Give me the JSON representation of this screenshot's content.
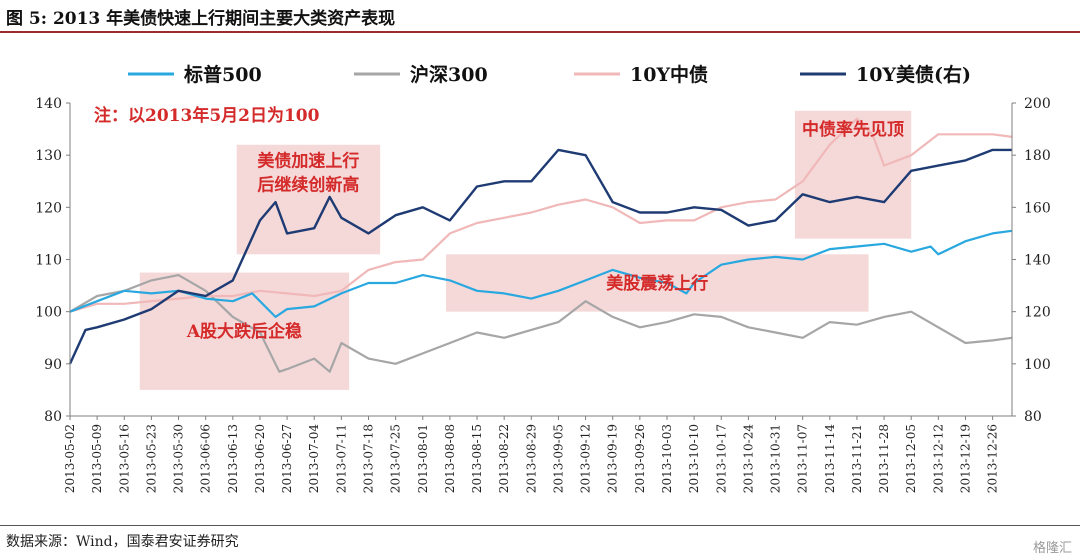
{
  "figure": {
    "title": "图 5:  2013 年美债快速上行期间主要大类资产表现",
    "source": "数据来源：Wind，国泰君安证券研究",
    "watermark": "格隆汇"
  },
  "chart_data": {
    "type": "line",
    "title": "",
    "note": "注：以2013年5月2日为100",
    "legend_position": "top",
    "x_ticks": [
      "2013-05-02",
      "2013-05-09",
      "2013-05-16",
      "2013-05-23",
      "2013-05-30",
      "2013-06-06",
      "2013-06-13",
      "2013-06-20",
      "2013-06-27",
      "2013-07-04",
      "2013-07-11",
      "2013-07-18",
      "2013-07-25",
      "2013-08-01",
      "2013-08-08",
      "2013-08-15",
      "2013-08-22",
      "2013-08-29",
      "2013-09-05",
      "2013-09-12",
      "2013-09-19",
      "2013-09-26",
      "2013-10-03",
      "2013-10-10",
      "2013-10-17",
      "2013-10-24",
      "2013-10-31",
      "2013-11-07",
      "2013-11-14",
      "2013-11-21",
      "2013-11-28",
      "2013-12-05",
      "2013-12-12",
      "2013-12-19",
      "2013-12-26"
    ],
    "x_range": [
      "2013-05-02",
      "2013-12-31"
    ],
    "y_left": {
      "min": 80,
      "max": 140,
      "ticks": [
        80,
        90,
        100,
        110,
        120,
        130,
        140
      ]
    },
    "y_right": {
      "min": 80,
      "max": 200,
      "ticks": [
        80,
        100,
        120,
        140,
        160,
        180,
        200
      ]
    },
    "series": [
      {
        "name": "标普500",
        "axis": "left",
        "color": "#29a8e0",
        "points": [
          [
            "2013-05-02",
            100
          ],
          [
            "2013-05-09",
            102
          ],
          [
            "2013-05-16",
            104
          ],
          [
            "2013-05-23",
            103.5
          ],
          [
            "2013-05-30",
            104
          ],
          [
            "2013-06-06",
            102.5
          ],
          [
            "2013-06-13",
            102
          ],
          [
            "2013-06-18",
            103.5
          ],
          [
            "2013-06-24",
            99
          ],
          [
            "2013-06-27",
            100.5
          ],
          [
            "2013-07-04",
            101
          ],
          [
            "2013-07-11",
            103.5
          ],
          [
            "2013-07-18",
            105.5
          ],
          [
            "2013-07-25",
            105.5
          ],
          [
            "2013-08-01",
            107
          ],
          [
            "2013-08-08",
            106
          ],
          [
            "2013-08-15",
            104
          ],
          [
            "2013-08-22",
            103.5
          ],
          [
            "2013-08-29",
            102.5
          ],
          [
            "2013-09-05",
            104
          ],
          [
            "2013-09-12",
            106
          ],
          [
            "2013-09-19",
            108
          ],
          [
            "2013-09-26",
            106.5
          ],
          [
            "2013-10-03",
            105.5
          ],
          [
            "2013-10-08",
            103.5
          ],
          [
            "2013-10-10",
            105.5
          ],
          [
            "2013-10-17",
            109
          ],
          [
            "2013-10-24",
            110
          ],
          [
            "2013-10-31",
            110.5
          ],
          [
            "2013-11-07",
            110
          ],
          [
            "2013-11-14",
            112
          ],
          [
            "2013-11-21",
            112.5
          ],
          [
            "2013-11-28",
            113
          ],
          [
            "2013-12-05",
            111.5
          ],
          [
            "2013-12-10",
            112.5
          ],
          [
            "2013-12-12",
            111
          ],
          [
            "2013-12-19",
            113.5
          ],
          [
            "2013-12-26",
            115
          ],
          [
            "2013-12-31",
            115.5
          ]
        ]
      },
      {
        "name": "沪深300",
        "axis": "left",
        "color": "#a6a6a6",
        "points": [
          [
            "2013-05-02",
            100
          ],
          [
            "2013-05-09",
            103
          ],
          [
            "2013-05-16",
            104
          ],
          [
            "2013-05-23",
            106
          ],
          [
            "2013-05-30",
            107
          ],
          [
            "2013-06-06",
            104
          ],
          [
            "2013-06-13",
            99
          ],
          [
            "2013-06-20",
            96
          ],
          [
            "2013-06-25",
            88.5
          ],
          [
            "2013-06-27",
            89
          ],
          [
            "2013-07-04",
            91
          ],
          [
            "2013-07-08",
            88.5
          ],
          [
            "2013-07-11",
            94
          ],
          [
            "2013-07-18",
            91
          ],
          [
            "2013-07-25",
            90
          ],
          [
            "2013-08-01",
            92
          ],
          [
            "2013-08-08",
            94
          ],
          [
            "2013-08-15",
            96
          ],
          [
            "2013-08-22",
            95
          ],
          [
            "2013-08-29",
            96.5
          ],
          [
            "2013-09-05",
            98
          ],
          [
            "2013-09-12",
            102
          ],
          [
            "2013-09-19",
            99
          ],
          [
            "2013-09-26",
            97
          ],
          [
            "2013-10-03",
            98
          ],
          [
            "2013-10-10",
            99.5
          ],
          [
            "2013-10-17",
            99
          ],
          [
            "2013-10-24",
            97
          ],
          [
            "2013-10-31",
            96
          ],
          [
            "2013-11-07",
            95
          ],
          [
            "2013-11-14",
            98
          ],
          [
            "2013-11-21",
            97.5
          ],
          [
            "2013-11-28",
            99
          ],
          [
            "2013-12-05",
            100
          ],
          [
            "2013-12-12",
            97
          ],
          [
            "2013-12-19",
            94
          ],
          [
            "2013-12-26",
            94.5
          ],
          [
            "2013-12-31",
            95
          ]
        ]
      },
      {
        "name": "10Y中债",
        "axis": "left",
        "color": "#f0b8b8",
        "points": [
          [
            "2013-05-02",
            100
          ],
          [
            "2013-05-09",
            101.5
          ],
          [
            "2013-05-16",
            101.5
          ],
          [
            "2013-05-23",
            102
          ],
          [
            "2013-05-30",
            102.5
          ],
          [
            "2013-06-06",
            103
          ],
          [
            "2013-06-13",
            103
          ],
          [
            "2013-06-20",
            104
          ],
          [
            "2013-06-27",
            103.5
          ],
          [
            "2013-07-04",
            103
          ],
          [
            "2013-07-11",
            104
          ],
          [
            "2013-07-18",
            108
          ],
          [
            "2013-07-25",
            109.5
          ],
          [
            "2013-08-01",
            110
          ],
          [
            "2013-08-08",
            115
          ],
          [
            "2013-08-15",
            117
          ],
          [
            "2013-08-22",
            118
          ],
          [
            "2013-08-29",
            119
          ],
          [
            "2013-09-05",
            120.5
          ],
          [
            "2013-09-12",
            121.5
          ],
          [
            "2013-09-19",
            120
          ],
          [
            "2013-09-26",
            117
          ],
          [
            "2013-10-03",
            117.5
          ],
          [
            "2013-10-10",
            117.5
          ],
          [
            "2013-10-17",
            120
          ],
          [
            "2013-10-24",
            121
          ],
          [
            "2013-10-31",
            121.5
          ],
          [
            "2013-11-07",
            125
          ],
          [
            "2013-11-14",
            132
          ],
          [
            "2013-11-21",
            137
          ],
          [
            "2013-11-25",
            134
          ],
          [
            "2013-11-28",
            128
          ],
          [
            "2013-12-05",
            130
          ],
          [
            "2013-12-12",
            134
          ],
          [
            "2013-12-19",
            134
          ],
          [
            "2013-12-26",
            134
          ],
          [
            "2013-12-31",
            133.5
          ]
        ]
      },
      {
        "name": "10Y美债(右)",
        "axis": "right",
        "color": "#1f3b73",
        "points": [
          [
            "2013-05-02",
            100
          ],
          [
            "2013-05-06",
            113
          ],
          [
            "2013-05-09",
            114
          ],
          [
            "2013-05-16",
            117
          ],
          [
            "2013-05-23",
            121
          ],
          [
            "2013-05-30",
            128
          ],
          [
            "2013-06-06",
            126
          ],
          [
            "2013-06-13",
            132
          ],
          [
            "2013-06-20",
            155
          ],
          [
            "2013-06-24",
            162
          ],
          [
            "2013-06-27",
            150
          ],
          [
            "2013-07-04",
            152
          ],
          [
            "2013-07-08",
            164
          ],
          [
            "2013-07-11",
            156
          ],
          [
            "2013-07-18",
            150
          ],
          [
            "2013-07-25",
            157
          ],
          [
            "2013-08-01",
            160
          ],
          [
            "2013-08-08",
            155
          ],
          [
            "2013-08-15",
            168
          ],
          [
            "2013-08-22",
            170
          ],
          [
            "2013-08-29",
            170
          ],
          [
            "2013-09-05",
            182
          ],
          [
            "2013-09-12",
            180
          ],
          [
            "2013-09-19",
            162
          ],
          [
            "2013-09-26",
            158
          ],
          [
            "2013-10-03",
            158
          ],
          [
            "2013-10-10",
            160
          ],
          [
            "2013-10-17",
            159
          ],
          [
            "2013-10-24",
            153
          ],
          [
            "2013-10-31",
            155
          ],
          [
            "2013-11-07",
            165
          ],
          [
            "2013-11-14",
            162
          ],
          [
            "2013-11-21",
            164
          ],
          [
            "2013-11-28",
            162
          ],
          [
            "2013-12-05",
            174
          ],
          [
            "2013-12-12",
            176
          ],
          [
            "2013-12-19",
            178
          ],
          [
            "2013-12-26",
            182
          ],
          [
            "2013-12-31",
            182
          ]
        ]
      }
    ],
    "annotations": [
      {
        "text": "美债加速上行",
        "text2": "后继续创新高",
        "x0": "2013-06-14",
        "x1": "2013-07-21",
        "y0": 111,
        "y1": 132
      },
      {
        "text": "A股大跌后企稳",
        "x0": "2013-05-20",
        "x1": "2013-07-13",
        "y0": 85,
        "y1": 107.5
      },
      {
        "text": "美股震荡上行",
        "x0": "2013-08-07",
        "x1": "2013-11-24",
        "y0": 100,
        "y1": 111
      },
      {
        "text": "中债率先见顶",
        "x0": "2013-11-05",
        "x1": "2013-12-05",
        "y0": 114,
        "y1": 138.5
      }
    ]
  }
}
